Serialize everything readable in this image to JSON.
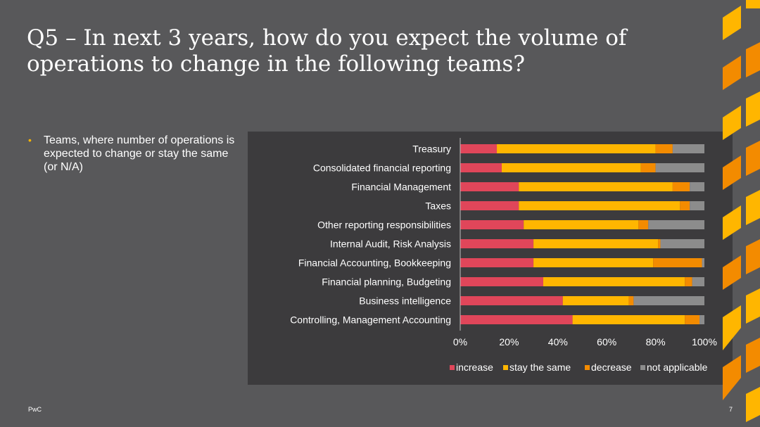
{
  "slide": {
    "title": "Q5 – In next 3 years, how do you expect the volume of operations to change in the following teams?",
    "bullet": "Teams, where number of operations is expected to change or stay the same (or N/A)",
    "footer_left": "PwC",
    "page_number": "7"
  },
  "chart_data": {
    "type": "bar",
    "orientation": "horizontal",
    "stacked": "percent",
    "categories": [
      "Treasury",
      "Consolidated financial reporting",
      "Financial Management",
      "Taxes",
      "Other reporting responsibilities",
      "Internal Audit, Risk Analysis",
      "Financial Accounting, Bookkeeping",
      "Financial planning, Budgeting",
      "Business intelligence",
      "Controlling, Management Accounting"
    ],
    "series": [
      {
        "name": "increase",
        "color": "#e0465a",
        "values": [
          15,
          17,
          24,
          24,
          26,
          30,
          30,
          34,
          42,
          46
        ]
      },
      {
        "name": "stay the same",
        "color": "#ffb600",
        "values": [
          65,
          57,
          63,
          66,
          47,
          51,
          49,
          58,
          27,
          46
        ]
      },
      {
        "name": "decrease",
        "color": "#f38b00",
        "values": [
          7,
          6,
          7,
          4,
          4,
          1,
          20,
          3,
          2,
          6
        ]
      },
      {
        "name": "not applicable",
        "color": "#8c8c8c",
        "values": [
          13,
          20,
          6,
          6,
          23,
          18,
          1,
          5,
          29,
          2
        ]
      }
    ],
    "xlim": [
      0,
      100
    ],
    "xticks": [
      "0%",
      "20%",
      "40%",
      "60%",
      "80%",
      "100%"
    ],
    "legend_position": "bottom",
    "grid": false
  }
}
